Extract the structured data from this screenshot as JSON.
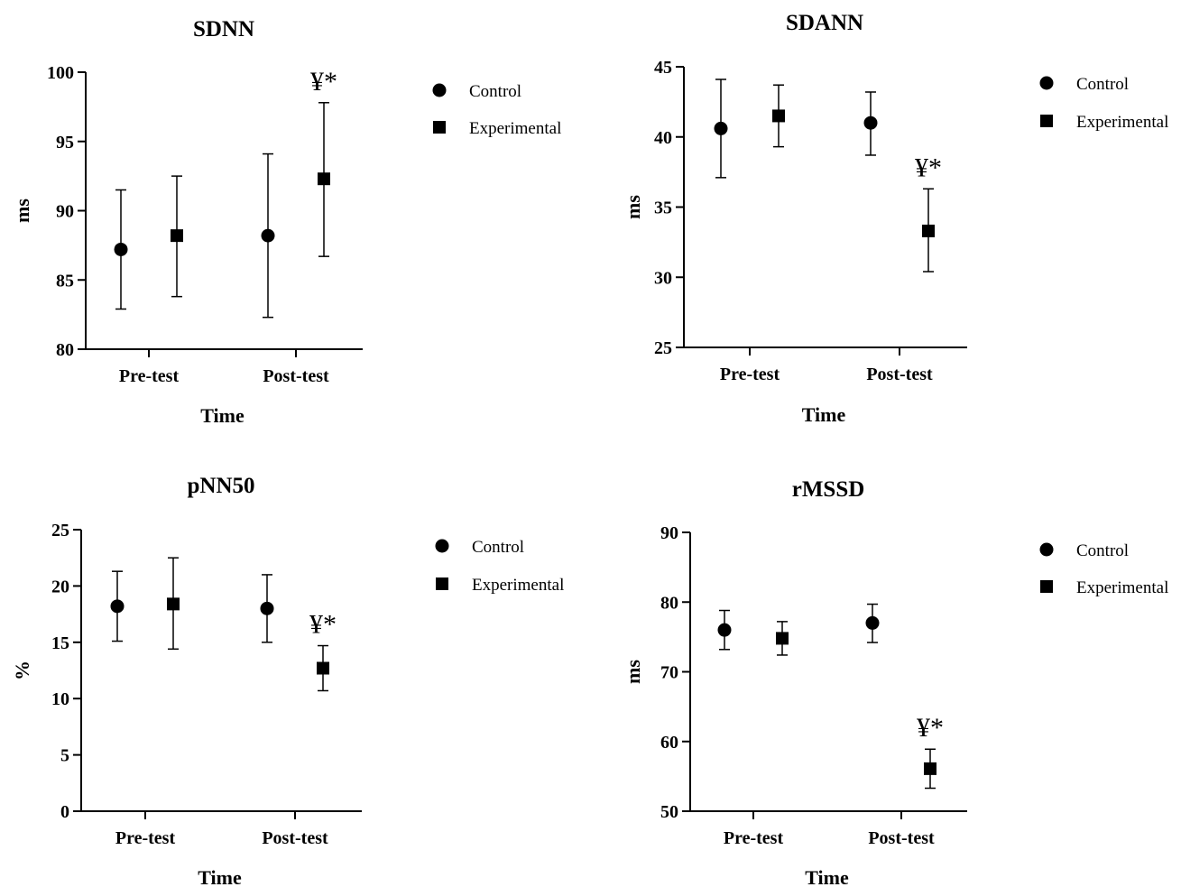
{
  "chart_data": [
    {
      "type": "scatter",
      "title": "SDNN",
      "xlabel": "Time",
      "ylabel": "ms",
      "categories": [
        "Pre-test",
        "Post-test"
      ],
      "ylim": [
        80,
        100
      ],
      "yticks": [
        80,
        85,
        90,
        95,
        100
      ],
      "series": [
        {
          "name": "Control",
          "marker": "circle",
          "values": [
            87.2,
            88.2
          ],
          "error_low": [
            82.9,
            82.3
          ],
          "error_high": [
            91.5,
            94.1
          ]
        },
        {
          "name": "Experimental",
          "marker": "square",
          "values": [
            88.2,
            92.3
          ],
          "error_low": [
            83.8,
            86.7
          ],
          "error_high": [
            92.5,
            97.8
          ]
        }
      ],
      "annotations": [
        {
          "text": "¥*",
          "series": 1,
          "category": 1
        }
      ],
      "legend": "right"
    },
    {
      "type": "scatter",
      "title": "SDANN",
      "xlabel": "Time",
      "ylabel": "ms",
      "categories": [
        "Pre-test",
        "Post-test"
      ],
      "ylim": [
        25,
        45
      ],
      "yticks": [
        25,
        30,
        35,
        40,
        45
      ],
      "series": [
        {
          "name": "Control",
          "marker": "circle",
          "values": [
            40.6,
            41.0
          ],
          "error_low": [
            37.1,
            38.7
          ],
          "error_high": [
            44.1,
            43.2
          ]
        },
        {
          "name": "Experimental",
          "marker": "square",
          "values": [
            41.5,
            33.3
          ],
          "error_low": [
            39.3,
            30.4
          ],
          "error_high": [
            43.7,
            36.3
          ]
        }
      ],
      "annotations": [
        {
          "text": "¥*",
          "series": 1,
          "category": 1
        }
      ],
      "legend": "right"
    },
    {
      "type": "scatter",
      "title": "pNN50",
      "xlabel": "Time",
      "ylabel": "%",
      "categories": [
        "Pre-test",
        "Post-test"
      ],
      "ylim": [
        0,
        25
      ],
      "yticks": [
        0,
        5,
        10,
        15,
        20,
        25
      ],
      "series": [
        {
          "name": "Control",
          "marker": "circle",
          "values": [
            18.2,
            18.0
          ],
          "error_low": [
            15.1,
            15.0
          ],
          "error_high": [
            21.3,
            21.0
          ]
        },
        {
          "name": "Experimental",
          "marker": "square",
          "values": [
            18.4,
            12.7
          ],
          "error_low": [
            14.4,
            10.7
          ],
          "error_high": [
            22.5,
            14.7
          ]
        }
      ],
      "annotations": [
        {
          "text": "¥*",
          "series": 1,
          "category": 1
        }
      ],
      "legend": "right"
    },
    {
      "type": "scatter",
      "title": "rMSSD",
      "xlabel": "Time",
      "ylabel": "ms",
      "categories": [
        "Pre-test",
        "Post-test"
      ],
      "ylim": [
        50,
        90
      ],
      "yticks": [
        50,
        60,
        70,
        80,
        90
      ],
      "series": [
        {
          "name": "Control",
          "marker": "circle",
          "values": [
            76.0,
            77.0
          ],
          "error_low": [
            73.2,
            74.2
          ],
          "error_high": [
            78.8,
            79.7
          ]
        },
        {
          "name": "Experimental",
          "marker": "square",
          "values": [
            74.8,
            56.1
          ],
          "error_low": [
            72.4,
            53.3
          ],
          "error_high": [
            77.2,
            58.9
          ]
        }
      ],
      "annotations": [
        {
          "text": "¥*",
          "series": 1,
          "category": 1
        }
      ],
      "legend": "right"
    }
  ]
}
